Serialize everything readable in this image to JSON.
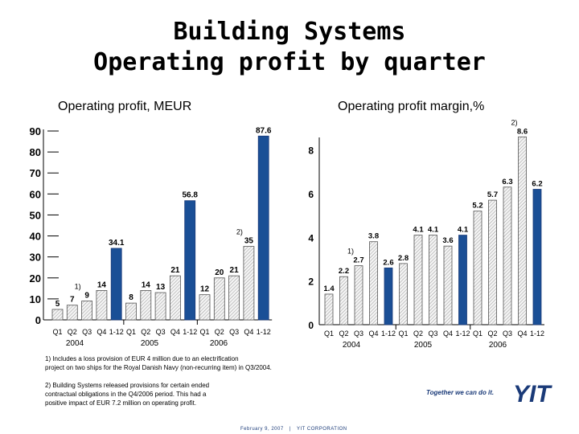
{
  "title_line1": "Building Systems",
  "title_line2": "Operating profit by quarter",
  "left_subtitle": "Operating profit, MEUR",
  "right_subtitle": "Operating profit margin,%",
  "footnote1_line1": "1) Includes a loss provision of EUR 4 million due to an electrification",
  "footnote1_line2": "project on two ships for the Royal Danish Navy (non-recurring item) in Q3/2004.",
  "footnote2_line1": "2) Building Systems released provisions for certain ended",
  "footnote2_line2": "contractual obligations in the Q4/2006 period. This had a",
  "footnote2_line3": "positive impact of EUR 7.2 million on operating profit.",
  "tagline": "Together we can do it.",
  "logo_text": "YIT",
  "footer_date": "February 9, 2007",
  "footer_sep": "|",
  "footer_company": "YIT CORPORATION",
  "colors": {
    "blue": "#1a4f96",
    "dark_blue": "#1a3a78",
    "bar_hatch": "#e2e2e2"
  },
  "chart_data": [
    {
      "type": "bar",
      "title": "Operating profit, MEUR",
      "ylim": [
        0,
        90
      ],
      "yticks": [
        0,
        10,
        20,
        30,
        40,
        50,
        60,
        70,
        80,
        90
      ],
      "categories": [
        "Q1",
        "Q2",
        "Q3",
        "Q4",
        "1-12",
        "Q1",
        "Q2",
        "Q3",
        "Q4",
        "1-12",
        "Q1",
        "Q2",
        "Q3",
        "Q4",
        "1-12"
      ],
      "years": [
        "2004",
        "2005",
        "2006"
      ],
      "values": [
        5,
        7,
        9,
        14,
        34.1,
        8,
        14,
        13,
        21,
        56.8,
        12,
        20,
        21,
        35,
        87.6
      ],
      "labels": [
        "5",
        "7",
        "9",
        "14",
        "34.1",
        "8",
        "14",
        "13",
        "21",
        "56.8",
        "12",
        "20",
        "21",
        "35",
        "87.6"
      ],
      "annual": [
        false,
        false,
        false,
        false,
        true,
        false,
        false,
        false,
        false,
        true,
        false,
        false,
        false,
        false,
        true
      ],
      "notes": [
        "",
        "",
        "1)",
        "",
        "",
        "",
        "",
        "",
        "",
        "",
        "",
        "",
        "",
        "2)",
        ""
      ]
    },
    {
      "type": "bar",
      "title": "Operating profit margin,%",
      "ylim": [
        0,
        8.5
      ],
      "yticks": [
        0,
        2,
        4,
        6,
        8
      ],
      "categories": [
        "Q1",
        "Q2",
        "Q3",
        "Q4",
        "1-12",
        "Q1",
        "Q2",
        "Q3",
        "Q4",
        "1-12",
        "Q1",
        "Q2",
        "Q3",
        "Q4",
        "1-12"
      ],
      "years": [
        "2004",
        "2005",
        "2006"
      ],
      "values": [
        1.4,
        2.2,
        2.7,
        3.8,
        2.6,
        2.8,
        4.1,
        4.1,
        3.6,
        4.1,
        5.2,
        5.7,
        6.3,
        8.6,
        6.2
      ],
      "labels": [
        "1.4",
        "2.2",
        "2.7",
        "3.8",
        "2.6",
        "2.8",
        "4.1",
        "4.1",
        "3.6",
        "4.1",
        "5.2",
        "5.7",
        "6.3",
        "8.6",
        "6.2"
      ],
      "annual": [
        false,
        false,
        false,
        false,
        true,
        false,
        false,
        false,
        false,
        true,
        false,
        false,
        false,
        false,
        true
      ],
      "notes": [
        "",
        "",
        "1)",
        "",
        "",
        "",
        "",
        "",
        "",
        "",
        "",
        "",
        "",
        "2)",
        ""
      ]
    }
  ]
}
